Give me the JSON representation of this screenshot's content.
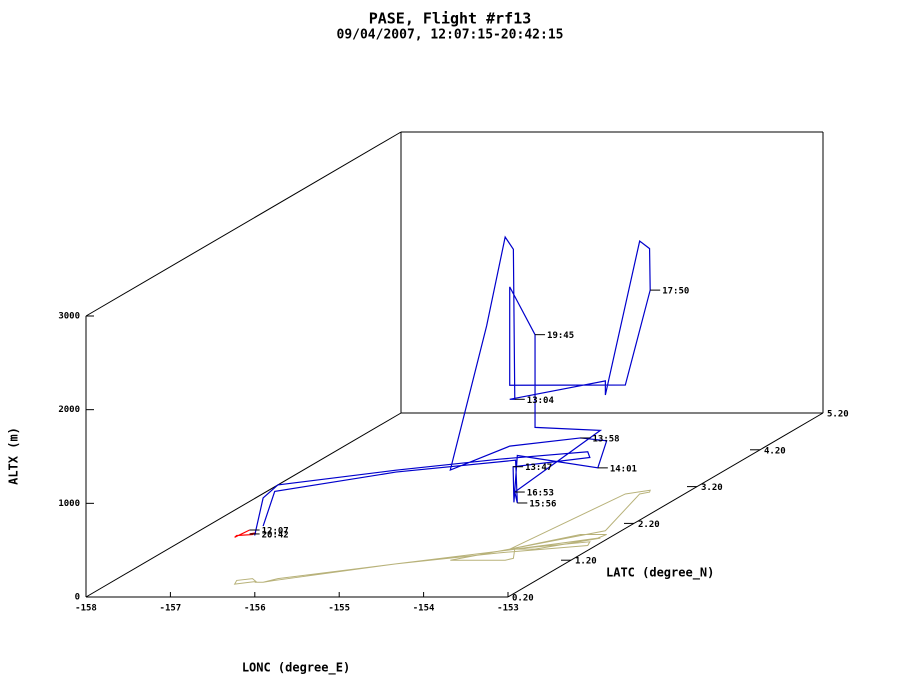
{
  "chart_data": {
    "type": "line3d",
    "title": "PASE, Flight #rf13",
    "subtitle": "09/04/2007, 12:07:15-20:42:15",
    "xlabel": "LONC (degree_E)",
    "ylabel": "LATC (degree_N)",
    "zlabel": "ALTX (m)",
    "xlim": [
      -158,
      -153
    ],
    "ylim": [
      0.2,
      5.2
    ],
    "zlim": [
      0,
      3000
    ],
    "xticks": [
      -158,
      -157,
      -156,
      -155,
      -154,
      -153
    ],
    "yticks": [
      {
        "value": 0.2,
        "label": "0.20"
      },
      {
        "value": 1.2,
        "label": "1.20"
      },
      {
        "value": 2.2,
        "label": "2.20"
      },
      {
        "value": 3.2,
        "label": "3.20"
      },
      {
        "value": 4.2,
        "label": "4.20"
      },
      {
        "value": 5.2,
        "label": "5.20"
      }
    ],
    "zticks": [
      0,
      1000,
      2000,
      3000
    ],
    "box_color": "#000000",
    "shadow_color": "#b8b27a",
    "series": [
      {
        "color": "#ff0000",
        "lon": [
          -156.36,
          -156.5,
          -156.55,
          -156.4,
          -156.3,
          -156.36
        ],
        "lat": [
          0.6,
          0.55,
          0.65,
          0.7,
          0.62,
          0.6
        ],
        "alt": [
          558,
          500,
          480,
          470,
          520,
          516
        ]
      },
      {
        "color": "#0000cc",
        "lon": [
          -156.3,
          -156.2,
          -156.1,
          -155.0,
          -154.0,
          -153.1,
          -153.15,
          -153.91,
          -153.9,
          -153.86,
          -153.13,
          -153.1,
          -153.41,
          -153.95,
          -154.43,
          -154.0,
          -153.78,
          -153.72,
          -153.89,
          -153.95,
          -153.19,
          -153.19,
          -153.53,
          -153.45,
          -153.48,
          -153.7,
          -153.95,
          -153.95,
          -153.65,
          -153.65,
          -153.1,
          -153.89,
          -153.86,
          -153.88,
          -155.0,
          -156.1,
          -156.2
        ],
        "lat": [
          0.6,
          0.6,
          0.7,
          1.1,
          1.4,
          1.6,
          1.7,
          1.5,
          1.5,
          1.5,
          1.8,
          1.9,
          1.9,
          1.5,
          1.2,
          1.2,
          1.2,
          1.25,
          1.5,
          1.5,
          2.0,
          2.0,
          3.0,
          3.05,
          3.1,
          3.0,
          1.5,
          1.5,
          1.5,
          1.5,
          1.8,
          1.5,
          1.5,
          1.5,
          1.1,
          0.65,
          0.6
        ],
        "alt": [
          500,
          900,
          1000,
          1000,
          1000,
          1000,
          900,
          880,
          500,
          1000,
          750,
          1000,
          1030,
          1100,
          963,
          2500,
          3450,
          3300,
          1600,
          1600,
          1600,
          1450,
          2700,
          2600,
          2137,
          1163,
          1750,
          2800,
          2290,
          1300,
          1150,
          610,
          493,
          950,
          980,
          950,
          600
        ]
      }
    ],
    "annotations": [
      {
        "text": "12:07",
        "lon": -156.36,
        "lat": 0.6,
        "alt": 558
      },
      {
        "text": "20:42",
        "lon": -156.36,
        "lat": 0.6,
        "alt": 516
      },
      {
        "text": "13:04",
        "lon": -153.89,
        "lat": 1.5,
        "alt": 1600
      },
      {
        "text": "19:45",
        "lon": -153.65,
        "lat": 1.5,
        "alt": 2290
      },
      {
        "text": "17:50",
        "lon": -153.48,
        "lat": 3.1,
        "alt": 2137
      },
      {
        "text": "13:58",
        "lon": -153.41,
        "lat": 1.9,
        "alt": 1030
      },
      {
        "text": "14:01",
        "lon": -153.13,
        "lat": 1.8,
        "alt": 750
      },
      {
        "text": "13:47",
        "lon": -153.91,
        "lat": 1.5,
        "alt": 880
      },
      {
        "text": "16:53",
        "lon": -153.89,
        "lat": 1.5,
        "alt": 610
      },
      {
        "text": "15:56",
        "lon": -153.86,
        "lat": 1.5,
        "alt": 493
      }
    ]
  }
}
